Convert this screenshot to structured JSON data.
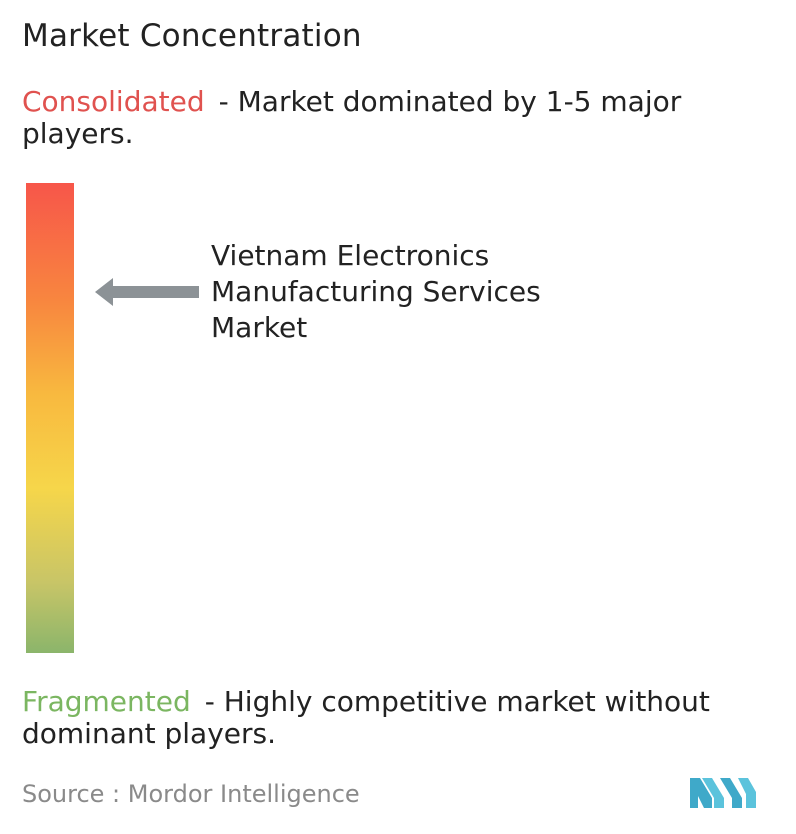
{
  "title": "Market Concentration",
  "consolidated": {
    "term": "Consolidated",
    "description": "- Market dominated by 1-5 major players."
  },
  "fragmented": {
    "term": "Fragmented",
    "description": "- Highly competitive market without dominant players."
  },
  "market_label_lines": [
    "Vietnam Electronics",
    "Manufacturing Services",
    "Market"
  ],
  "source": "Source :  Mordor Intelligence",
  "logo_icon": "mordor-intelligence-logo",
  "colors": {
    "consolidated": "#e0524f",
    "fragmented": "#7bb661",
    "arrow": "#8c9296",
    "scale_gradient": [
      "#f7564a",
      "#f8863f",
      "#f8b93f",
      "#f6d64a",
      "#c8c567",
      "#8bb56b"
    ]
  },
  "chart_data": {
    "type": "gradient-scale",
    "scale_top_label": "Consolidated",
    "scale_bottom_label": "Fragmented",
    "marker_label": "Vietnam Electronics Manufacturing Services Market",
    "marker_position_from_top": 0.23
  }
}
